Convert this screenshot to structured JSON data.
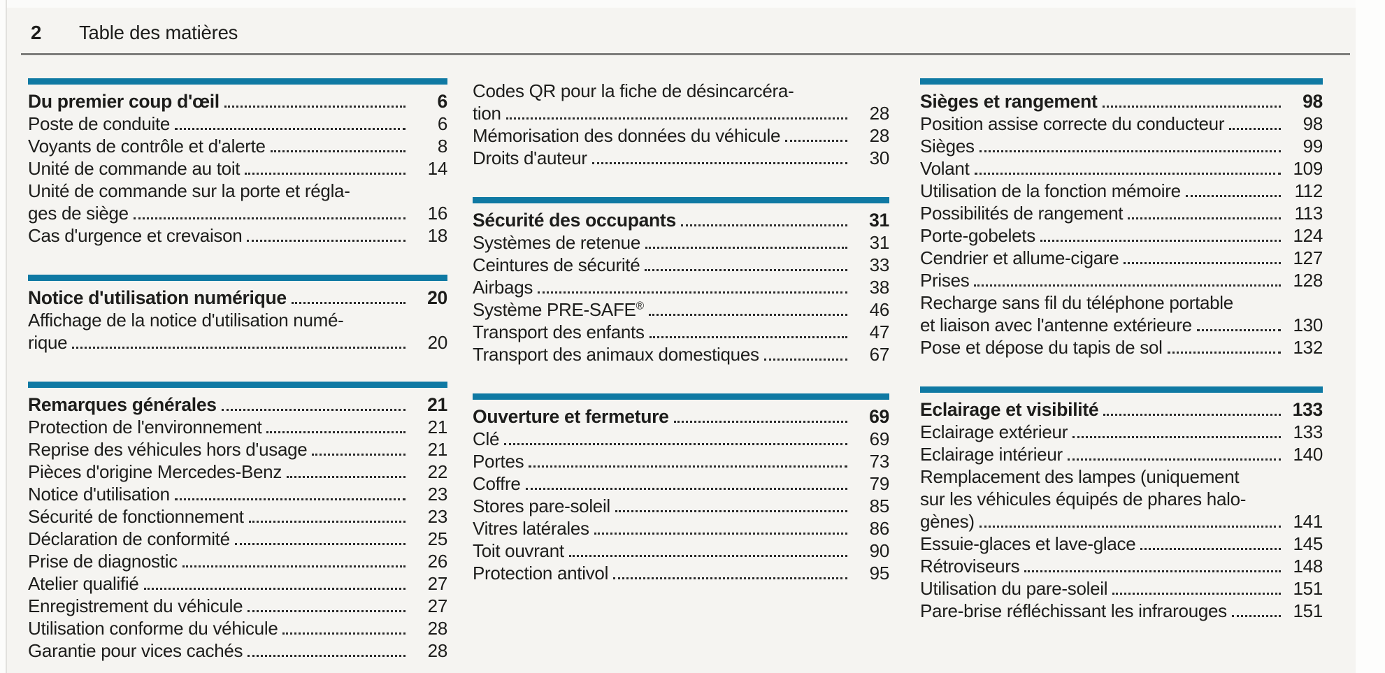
{
  "page": {
    "number": "2",
    "title": "Table des matières"
  },
  "colors": {
    "accent_bar": "#0F79A3",
    "header_rule": "#7D7D7B",
    "background": "#F5F4F1",
    "text": "#1D1D1B"
  },
  "columns": [
    {
      "groups": [
        {
          "bar": true,
          "title": "Du premier coup d'œil",
          "title_page": "6",
          "entries": [
            {
              "lines": [
                "Poste de conduite"
              ],
              "page": "6"
            },
            {
              "lines": [
                "Voyants de contrôle et d'alerte"
              ],
              "page": "8"
            },
            {
              "lines": [
                "Unité de commande au toit"
              ],
              "page": "14"
            },
            {
              "lines": [
                "Unité de commande sur la porte et régla-",
                "ges de siège"
              ],
              "page": "16"
            },
            {
              "lines": [
                "Cas d'urgence et crevaison"
              ],
              "page": "18"
            }
          ]
        },
        {
          "bar": true,
          "title": "Notice d'utilisation numérique",
          "title_page": "20",
          "entries": [
            {
              "lines": [
                "Affichage de la notice d'utilisation numé-",
                "rique"
              ],
              "page": "20"
            }
          ]
        },
        {
          "bar": true,
          "title": "Remarques générales",
          "title_page": "21",
          "entries": [
            {
              "lines": [
                "Protection de l'environnement"
              ],
              "page": "21"
            },
            {
              "lines": [
                "Reprise des véhicules hors d'usage"
              ],
              "page": "21"
            },
            {
              "lines": [
                "Pièces d'origine Mercedes-Benz"
              ],
              "page": "22"
            },
            {
              "lines": [
                "Notice d'utilisation"
              ],
              "page": "23"
            },
            {
              "lines": [
                "Sécurité de fonctionnement"
              ],
              "page": "23"
            },
            {
              "lines": [
                "Déclaration de conformité"
              ],
              "page": "25"
            },
            {
              "lines": [
                "Prise de diagnostic"
              ],
              "page": "26"
            },
            {
              "lines": [
                "Atelier qualifié"
              ],
              "page": "27"
            },
            {
              "lines": [
                "Enregistrement du véhicule"
              ],
              "page": "27"
            },
            {
              "lines": [
                "Utilisation conforme du véhicule"
              ],
              "page": "28"
            },
            {
              "lines": [
                "Garantie pour vices cachés"
              ],
              "page": "28"
            }
          ]
        }
      ]
    },
    {
      "groups": [
        {
          "bar": false,
          "title": null,
          "title_page": null,
          "entries": [
            {
              "lines": [
                "Codes QR pour la fiche de désincarcéra-",
                "tion"
              ],
              "page": "28"
            },
            {
              "lines": [
                "Mémorisation des données du véhicule"
              ],
              "page": "28"
            },
            {
              "lines": [
                "Droits d'auteur"
              ],
              "page": "30"
            }
          ]
        },
        {
          "bar": true,
          "title": "Sécurité des occupants",
          "title_page": "31",
          "entries": [
            {
              "lines": [
                "Systèmes de retenue"
              ],
              "page": "31"
            },
            {
              "lines": [
                "Ceintures de sécurité"
              ],
              "page": "33"
            },
            {
              "lines": [
                "Airbags"
              ],
              "page": "38"
            },
            {
              "lines": [
                "Système PRE-SAFE®"
              ],
              "page": "46"
            },
            {
              "lines": [
                "Transport des enfants"
              ],
              "page": "47"
            },
            {
              "lines": [
                "Transport des animaux domestiques"
              ],
              "page": "67"
            }
          ]
        },
        {
          "bar": true,
          "title": "Ouverture et fermeture",
          "title_page": "69",
          "entries": [
            {
              "lines": [
                "Clé"
              ],
              "page": "69"
            },
            {
              "lines": [
                "Portes"
              ],
              "page": "73"
            },
            {
              "lines": [
                "Coffre"
              ],
              "page": "79"
            },
            {
              "lines": [
                "Stores pare-soleil"
              ],
              "page": "85"
            },
            {
              "lines": [
                "Vitres latérales"
              ],
              "page": "86"
            },
            {
              "lines": [
                "Toit ouvrant"
              ],
              "page": "90"
            },
            {
              "lines": [
                "Protection antivol"
              ],
              "page": "95"
            }
          ]
        }
      ]
    },
    {
      "groups": [
        {
          "bar": true,
          "title": "Sièges et rangement",
          "title_page": "98",
          "entries": [
            {
              "lines": [
                "Position assise correcte du conducteur"
              ],
              "page": "98"
            },
            {
              "lines": [
                "Sièges"
              ],
              "page": "99"
            },
            {
              "lines": [
                "Volant"
              ],
              "page": "109"
            },
            {
              "lines": [
                "Utilisation de la fonction mémoire"
              ],
              "page": "112"
            },
            {
              "lines": [
                "Possibilités de rangement"
              ],
              "page": "113"
            },
            {
              "lines": [
                "Porte-gobelets"
              ],
              "page": "124"
            },
            {
              "lines": [
                "Cendrier et allume-cigare"
              ],
              "page": "127"
            },
            {
              "lines": [
                "Prises"
              ],
              "page": "128"
            },
            {
              "lines": [
                "Recharge sans fil du téléphone portable",
                "et liaison avec l'antenne extérieure"
              ],
              "page": "130"
            },
            {
              "lines": [
                "Pose et dépose du tapis de sol"
              ],
              "page": "132"
            }
          ]
        },
        {
          "bar": true,
          "title": "Eclairage et visibilité",
          "title_page": "133",
          "entries": [
            {
              "lines": [
                "Eclairage extérieur"
              ],
              "page": "133"
            },
            {
              "lines": [
                "Eclairage intérieur"
              ],
              "page": "140"
            },
            {
              "lines": [
                "Remplacement des lampes (uniquement",
                "sur les véhicules équipés de phares halo-",
                "gènes)"
              ],
              "page": "141"
            },
            {
              "lines": [
                "Essuie-glaces et lave-glace"
              ],
              "page": "145"
            },
            {
              "lines": [
                "Rétroviseurs"
              ],
              "page": "148"
            },
            {
              "lines": [
                "Utilisation du pare-soleil"
              ],
              "page": "151"
            },
            {
              "lines": [
                "Pare-brise réfléchissant les infrarouges"
              ],
              "page": "151"
            }
          ]
        }
      ]
    }
  ]
}
